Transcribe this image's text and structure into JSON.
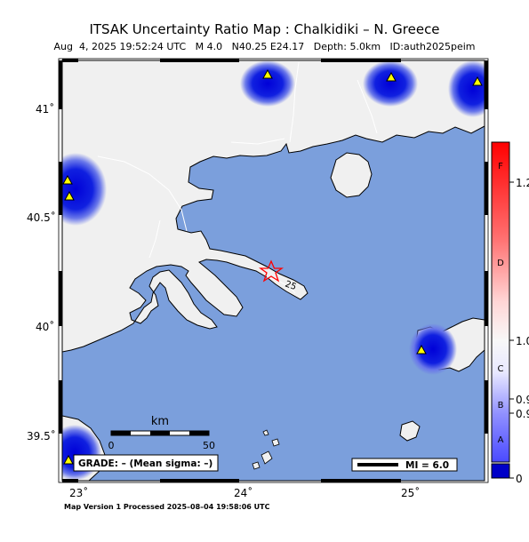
{
  "header": {
    "title": "ITSAK Uncertainty Ratio Map : Chalkidiki – N. Greece",
    "subtitle": "Aug  4, 2025 19:52:24 UTC   M 4.0   N40.25 E24.17   Depth: 5.0km   ID:auth2025peim"
  },
  "map": {
    "lon_labels": [
      "23˚",
      "24˚",
      "25˚"
    ],
    "lat_labels": [
      "41˚",
      "40.5˚",
      "40˚",
      "39.5˚"
    ],
    "contour_label": "25",
    "colors": {
      "sea": "#7b9fdc",
      "land": "#f0f0f0",
      "stations": "#ffff00",
      "epicenter": "#ff0000"
    }
  },
  "scalebar": {
    "unit": "km",
    "start": "0",
    "end": "50"
  },
  "grade": {
    "text": "GRADE: – (Mean sigma: –)"
  },
  "mi_box": {
    "text": "MI = 6.0"
  },
  "colorbar": {
    "grade_letters": [
      "F",
      "D",
      "C",
      "B",
      "A"
    ],
    "values": [
      "1.2",
      "1.0",
      "0.9",
      "0.9",
      "0"
    ]
  },
  "footer": {
    "text": "Map Version 1 Processed 2025–08–04 19:58:06 UTC"
  }
}
